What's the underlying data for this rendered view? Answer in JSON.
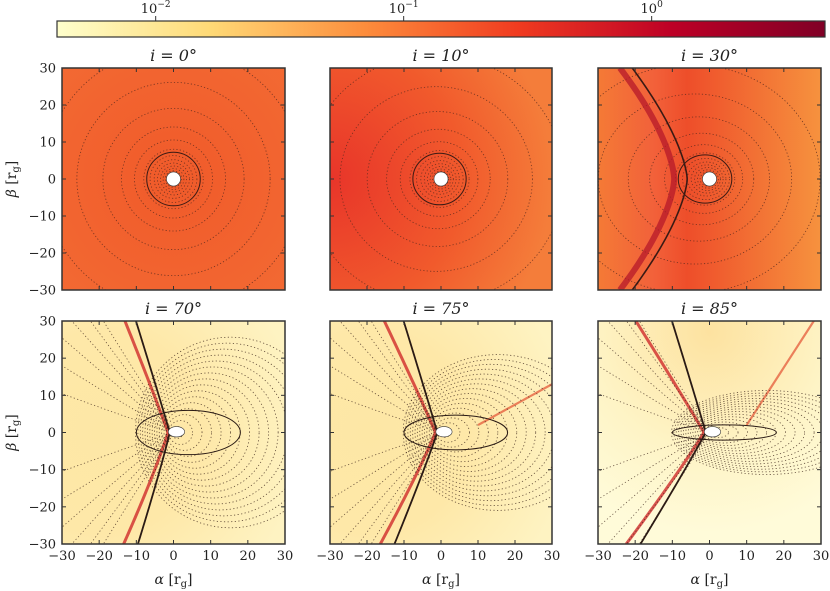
{
  "chart_data": {
    "type": "heatmap",
    "colorbar": {
      "scale": "log",
      "colormap": "YlOrRd",
      "ticks": [
        {
          "value": 0.01,
          "base": "10",
          "exp": "−2"
        },
        {
          "value": 0.1,
          "base": "10",
          "exp": "−1"
        },
        {
          "value": 1,
          "base": "10",
          "exp": "0"
        }
      ],
      "range": [
        0.004,
        5
      ]
    },
    "xlabel": {
      "sym": "α",
      "unit": "[r",
      "sub": "g",
      "close": "]"
    },
    "ylabel": {
      "sym": "β",
      "unit": "[r",
      "sub": "g",
      "close": "]"
    },
    "xlim": [
      -30,
      30
    ],
    "ylim": [
      -30,
      30
    ],
    "xticks": [
      "−30",
      "−20",
      "−10",
      "0",
      "10",
      "20",
      "30"
    ],
    "yticks": [
      "30",
      "20",
      "10",
      "0",
      "−10",
      "−20",
      "−30"
    ],
    "panels": [
      {
        "title": "i = 0°",
        "inclination": 0
      },
      {
        "title": "i = 10°",
        "inclination": 10
      },
      {
        "title": "i = 30°",
        "inclination": 30
      },
      {
        "title": "i = 70°",
        "inclination": 70
      },
      {
        "title": "i = 75°",
        "inclination": 75
      },
      {
        "title": "i = 85°",
        "inclination": 85
      }
    ]
  }
}
